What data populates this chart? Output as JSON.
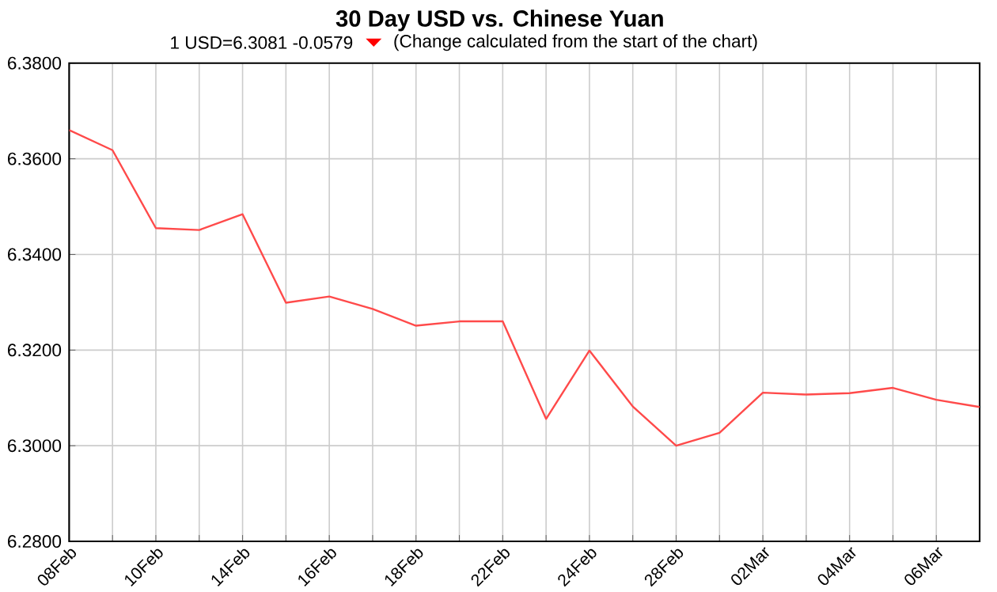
{
  "chart_data": {
    "type": "line",
    "title": "30 Day USD vs. Chinese Yuan",
    "subtitle": "1 USD=6.3081  -0.0579",
    "annotations": [
      "(Change calculated from the start of the chart)"
    ],
    "categories": [
      "08Feb",
      null,
      "10Feb",
      null,
      "14Feb",
      null,
      "16Feb",
      null,
      "18Feb",
      null,
      "22Feb",
      null,
      "24Feb",
      null,
      "28Feb",
      null,
      "02Mar",
      null,
      "04Mar",
      null,
      "06Mar",
      null
    ],
    "series": [
      {
        "color": "#ff4a4a",
        "values": [
          6.366,
          6.3618,
          6.3455,
          6.3451,
          6.3484,
          6.3299,
          6.3312,
          6.3286,
          6.3251,
          6.326,
          6.326,
          6.3056,
          6.3199,
          6.3082,
          6.3,
          6.3027,
          6.3111,
          6.3107,
          6.311,
          6.3121,
          6.3096,
          6.3081
        ]
      }
    ],
    "ylim": [
      6.28,
      6.38
    ],
    "yticks": [
      {
        "value": 6.28,
        "label": "6.2800"
      },
      {
        "value": 6.3,
        "label": "6.3000"
      },
      {
        "value": 6.32,
        "label": "6.3200"
      },
      {
        "value": 6.34,
        "label": "6.3400"
      },
      {
        "value": 6.36,
        "label": "6.3600"
      },
      {
        "value": 6.38,
        "label": "6.3800"
      }
    ],
    "grid": true,
    "marker": "none",
    "line_style": "solid"
  }
}
